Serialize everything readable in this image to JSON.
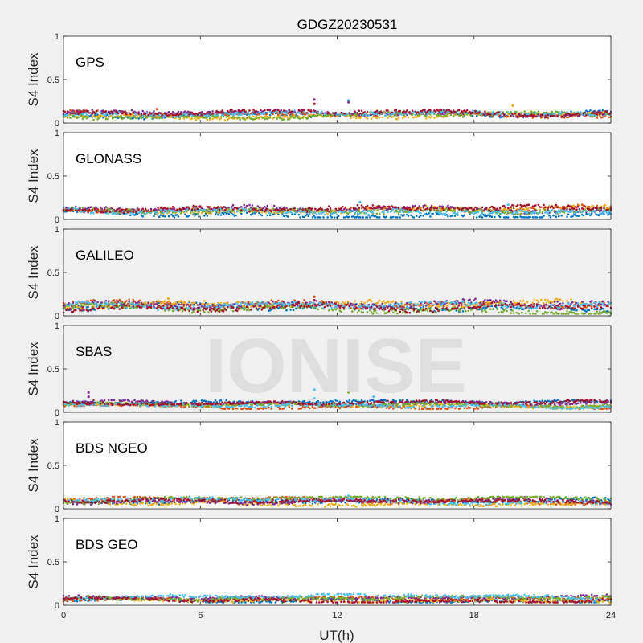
{
  "chart_data": {
    "type": "scatter",
    "title": "GDGZ20230531",
    "xlabel": "UT(h)",
    "ylabel": "S4 Index",
    "xlim": [
      0,
      24
    ],
    "ylim": [
      0,
      1
    ],
    "xticks": [
      0,
      6,
      12,
      18,
      24
    ],
    "yticks": [
      0,
      0.5,
      1
    ],
    "ytick_labels": [
      "0",
      "0.5",
      "1"
    ],
    "watermark": "IONISE",
    "series_colors": [
      "#0072BD",
      "#D95319",
      "#EDB120",
      "#7E2F8E",
      "#77AC30",
      "#4DBEEE",
      "#A2142F"
    ],
    "panels": [
      {
        "name": "GPS",
        "background": "#ffffff",
        "s4_typical_range": [
          0.03,
          0.15
        ],
        "outliers": [
          {
            "x": 11.0,
            "y": 0.27,
            "color": "#7E2F8E"
          },
          {
            "x": 11.0,
            "y": 0.22,
            "color": "#A2142F"
          },
          {
            "x": 12.5,
            "y": 0.26,
            "color": "#4DBEEE"
          },
          {
            "x": 12.5,
            "y": 0.24,
            "color": "#7E2F8E"
          },
          {
            "x": 19.7,
            "y": 0.2,
            "color": "#EDB120"
          },
          {
            "x": 4.1,
            "y": 0.16,
            "color": "#D95319"
          }
        ]
      },
      {
        "name": "GLONASS",
        "background": "#ffffff",
        "s4_typical_range": [
          0.03,
          0.17
        ],
        "outliers": [
          {
            "x": 13.0,
            "y": 0.2,
            "color": "#4DBEEE"
          },
          {
            "x": 19.5,
            "y": 0.17,
            "color": "#4DBEEE"
          }
        ]
      },
      {
        "name": "GALILEO",
        "background": "#f0f0f0",
        "s4_typical_range": [
          0.03,
          0.2
        ],
        "outliers": [
          {
            "x": 11.0,
            "y": 0.22,
            "color": "#D95319"
          },
          {
            "x": 11.0,
            "y": 0.18,
            "color": "#A2142F"
          },
          {
            "x": 4.6,
            "y": 0.2,
            "color": "#EDB120"
          },
          {
            "x": 23.5,
            "y": 0.16,
            "color": "#4DBEEE"
          }
        ]
      },
      {
        "name": "SBAS",
        "background": "#f0f0f0",
        "s4_typical_range": [
          0.05,
          0.14
        ],
        "outliers": [
          {
            "x": 1.1,
            "y": 0.23,
            "color": "#7E2F8E"
          },
          {
            "x": 1.1,
            "y": 0.18,
            "color": "#7E2F8E"
          },
          {
            "x": 11.0,
            "y": 0.26,
            "color": "#4DBEEE"
          },
          {
            "x": 11.0,
            "y": 0.16,
            "color": "#4DBEEE"
          },
          {
            "x": 12.5,
            "y": 0.23,
            "color": "#77AC30"
          },
          {
            "x": 13.6,
            "y": 0.18,
            "color": "#4DBEEE"
          }
        ]
      },
      {
        "name": "BDS NGEO",
        "background": "#ffffff",
        "s4_typical_range": [
          0.03,
          0.14
        ],
        "outliers": [
          {
            "x": 12.5,
            "y": 0.15,
            "color": "#4DBEEE"
          }
        ]
      },
      {
        "name": "BDS GEO",
        "background": "#ffffff",
        "s4_typical_range": [
          0.04,
          0.13
        ],
        "outliers": []
      }
    ]
  }
}
